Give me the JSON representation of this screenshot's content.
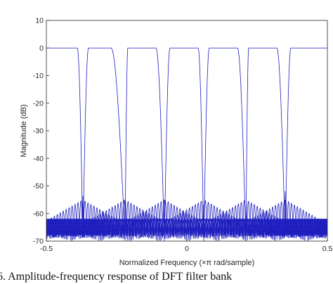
{
  "chart_data": {
    "type": "line",
    "title": "",
    "xlabel": "Normalized Frequency (×π rad/sample)",
    "ylabel": "Magnitude (dB)",
    "xlim": [
      -0.5,
      0.5
    ],
    "ylim": [
      -70,
      10
    ],
    "xticks": [
      -0.5,
      0,
      0.5
    ],
    "xtick_labels": [
      "-0.5",
      "0",
      "0.5"
    ],
    "yticks": [
      10,
      0,
      -10,
      -20,
      -30,
      -40,
      -50,
      -60,
      -70
    ],
    "ytick_labels": [
      "10",
      "0",
      "-10",
      "-20",
      "-30",
      "-40",
      "-50",
      "-60",
      "-70"
    ],
    "grid": false,
    "line_color": "#1f1fbf",
    "passband_level_db": 0,
    "sidelobe_floor_db": -70,
    "sidelobe_peak_db": -55,
    "series": [
      {
        "passband": [
          -0.5,
          -0.39
        ],
        "transition_edges": [
          -0.5,
          -0.37
        ]
      },
      {
        "passband": [
          -0.35,
          -0.27
        ],
        "transition_edges": [
          -0.37,
          -0.22
        ]
      },
      {
        "passband": [
          -0.21,
          -0.11
        ],
        "transition_edges": [
          -0.22,
          -0.08
        ]
      },
      {
        "passband": [
          -0.06,
          0.04
        ],
        "transition_edges": [
          -0.08,
          0.06
        ]
      },
      {
        "passband": [
          0.08,
          0.18
        ],
        "transition_edges": [
          0.06,
          0.21
        ]
      },
      {
        "passband": [
          0.22,
          0.32
        ],
        "transition_edges": [
          0.21,
          0.35
        ]
      },
      {
        "passband": [
          0.37,
          0.5
        ],
        "transition_edges": [
          0.35,
          0.5
        ]
      }
    ]
  },
  "caption": "6. Amplitude-frequency response of DFT filter bank"
}
